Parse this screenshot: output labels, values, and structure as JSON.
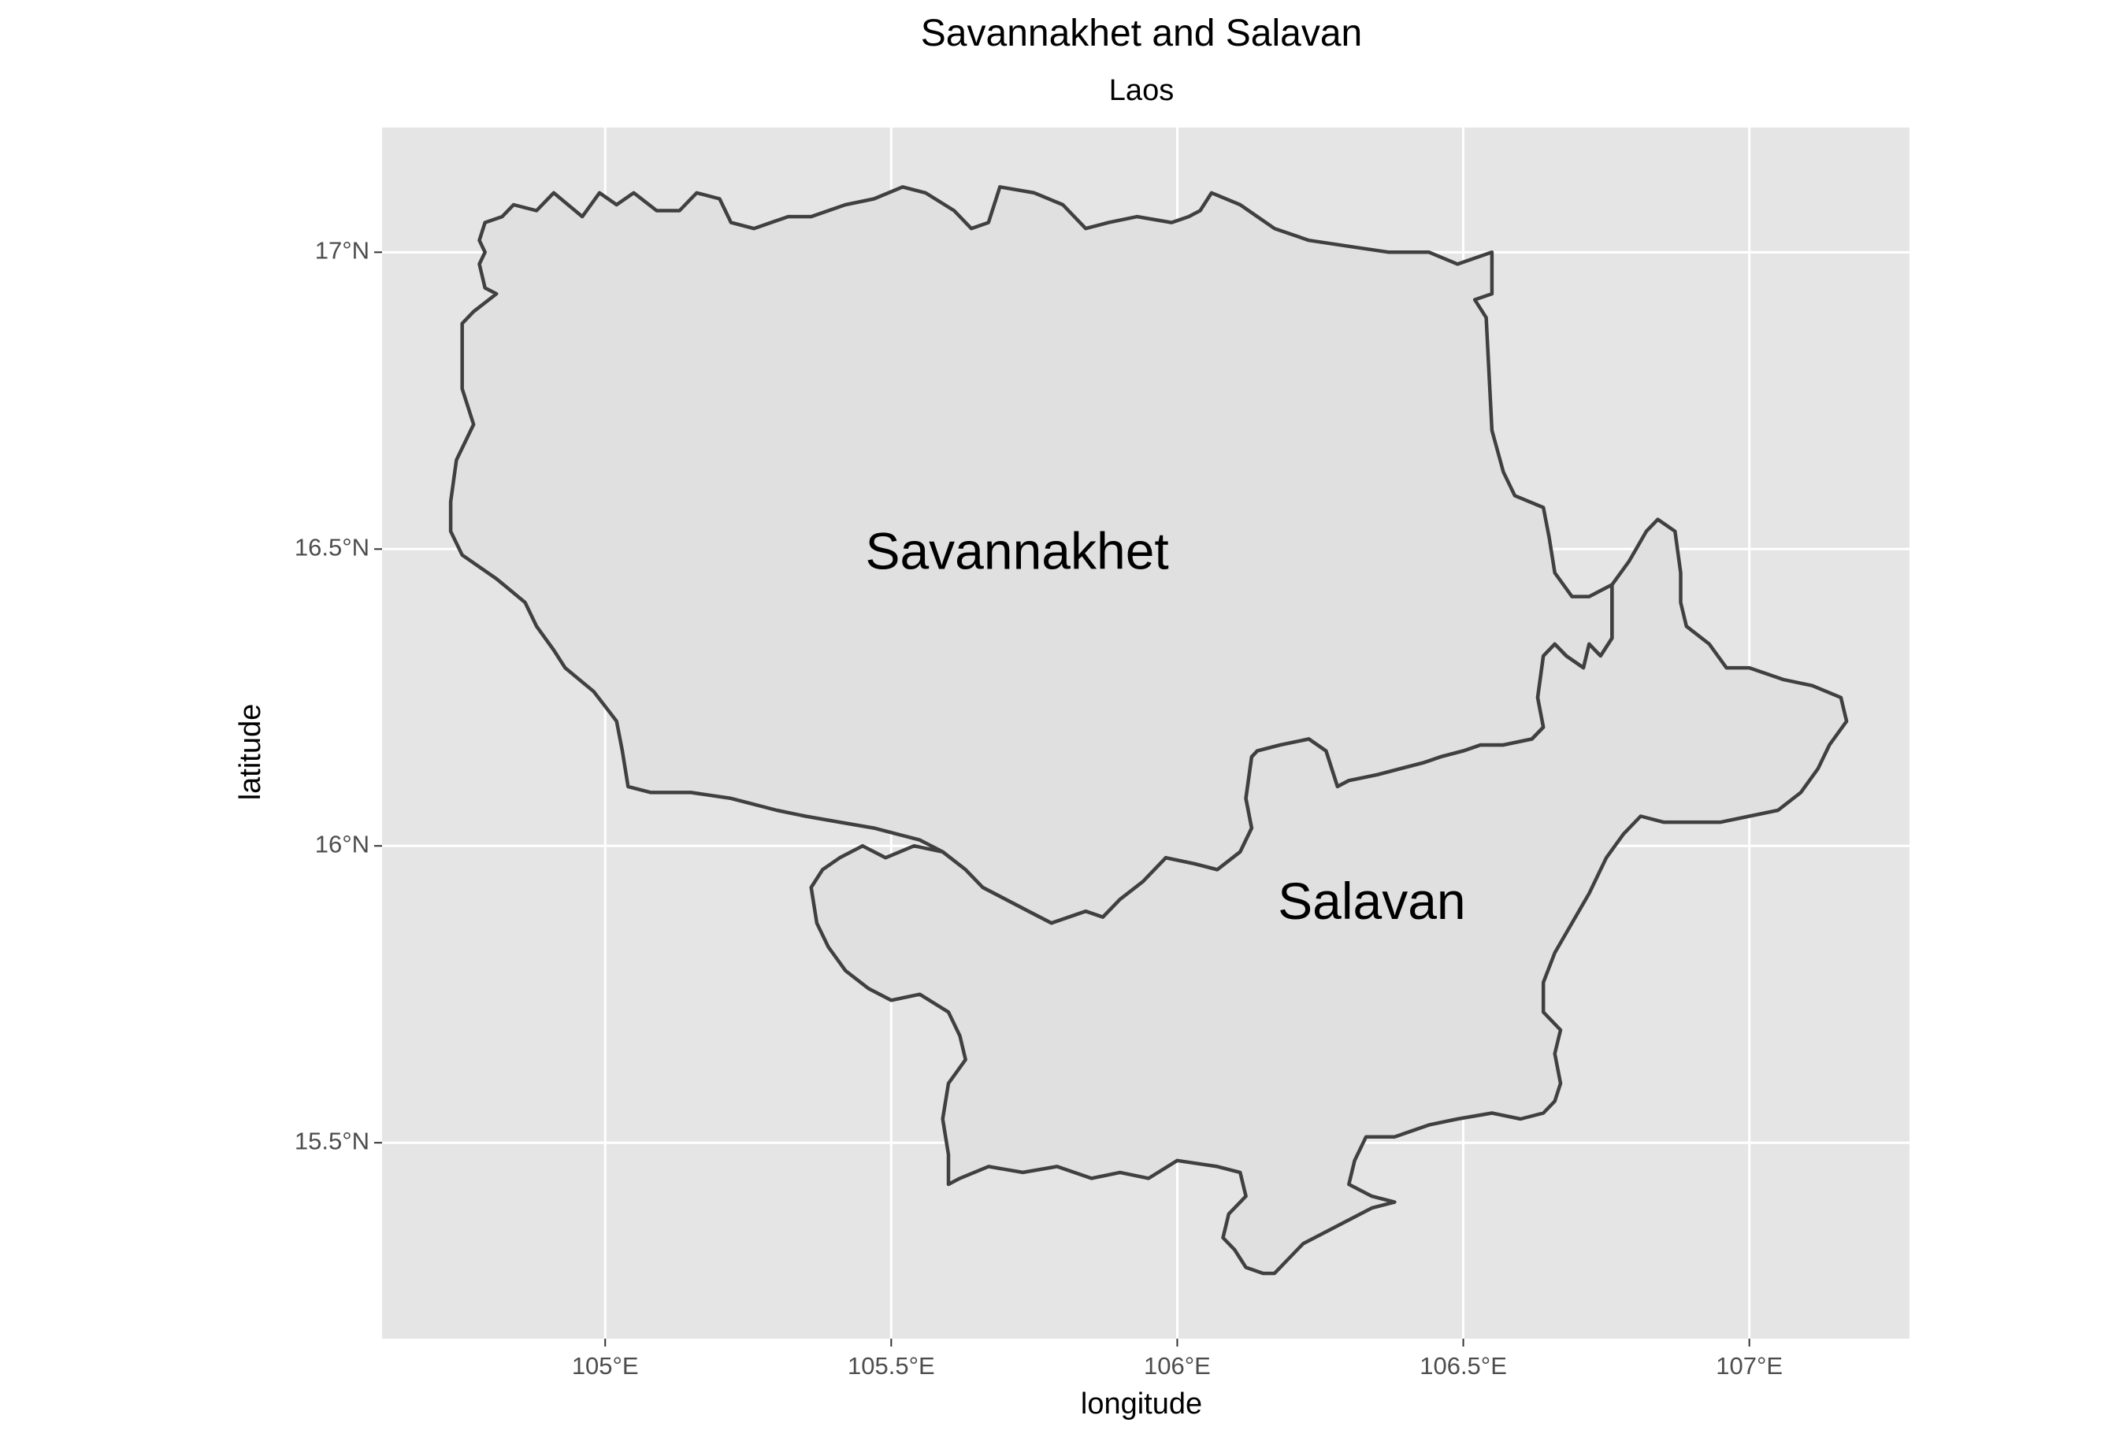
{
  "title": "Savannakhet and Salavan",
  "subtitle": "Laos",
  "xlabel": "longitude",
  "ylabel": "latitude",
  "x_ticks": [
    {
      "value": 105.0,
      "label": "105°E"
    },
    {
      "value": 105.5,
      "label": "105.5°E"
    },
    {
      "value": 106.0,
      "label": "106°E"
    },
    {
      "value": 106.5,
      "label": "106.5°E"
    },
    {
      "value": 107.0,
      "label": "107°E"
    }
  ],
  "y_ticks": [
    {
      "value": 15.5,
      "label": "15.5°N"
    },
    {
      "value": 16.0,
      "label": "16°N"
    },
    {
      "value": 16.5,
      "label": "16.5°N"
    },
    {
      "value": 17.0,
      "label": "17°N"
    }
  ],
  "xlim": [
    104.61,
    107.28
  ],
  "ylim": [
    15.17,
    17.21
  ],
  "colors": {
    "panel": "#e5e5e5",
    "grid": "#ffffff",
    "region_fill": "#e0e0e0",
    "region_stroke": "#404040"
  },
  "regions": [
    {
      "name": "Savannakhet",
      "label_position": [
        105.72,
        16.49
      ],
      "boundary": [
        [
          104.79,
          16.94
        ],
        [
          104.78,
          16.98
        ],
        [
          104.79,
          17.0
        ],
        [
          104.78,
          17.02
        ],
        [
          104.79,
          17.05
        ],
        [
          104.82,
          17.06
        ],
        [
          104.84,
          17.08
        ],
        [
          104.88,
          17.07
        ],
        [
          104.91,
          17.1
        ],
        [
          104.96,
          17.06
        ],
        [
          104.99,
          17.1
        ],
        [
          105.02,
          17.08
        ],
        [
          105.05,
          17.1
        ],
        [
          105.09,
          17.07
        ],
        [
          105.13,
          17.07
        ],
        [
          105.16,
          17.1
        ],
        [
          105.2,
          17.09
        ],
        [
          105.22,
          17.05
        ],
        [
          105.26,
          17.04
        ],
        [
          105.29,
          17.05
        ],
        [
          105.32,
          17.06
        ],
        [
          105.36,
          17.06
        ],
        [
          105.42,
          17.08
        ],
        [
          105.47,
          17.09
        ],
        [
          105.52,
          17.11
        ],
        [
          105.56,
          17.1
        ],
        [
          105.61,
          17.07
        ],
        [
          105.64,
          17.04
        ],
        [
          105.67,
          17.05
        ],
        [
          105.69,
          17.11
        ],
        [
          105.75,
          17.1
        ],
        [
          105.8,
          17.08
        ],
        [
          105.84,
          17.04
        ],
        [
          105.88,
          17.05
        ],
        [
          105.93,
          17.06
        ],
        [
          105.99,
          17.05
        ],
        [
          106.02,
          17.06
        ],
        [
          106.04,
          17.07
        ],
        [
          106.06,
          17.1
        ],
        [
          106.11,
          17.08
        ],
        [
          106.14,
          17.06
        ],
        [
          106.17,
          17.04
        ],
        [
          106.23,
          17.02
        ],
        [
          106.3,
          17.01
        ],
        [
          106.37,
          17.0
        ],
        [
          106.44,
          17.0
        ],
        [
          106.49,
          16.98
        ],
        [
          106.55,
          17.0
        ],
        [
          106.55,
          16.93
        ],
        [
          106.52,
          16.92
        ],
        [
          106.54,
          16.89
        ],
        [
          106.55,
          16.7
        ],
        [
          106.57,
          16.63
        ],
        [
          106.59,
          16.59
        ],
        [
          106.64,
          16.57
        ],
        [
          106.65,
          16.52
        ],
        [
          106.66,
          16.46
        ],
        [
          106.69,
          16.42
        ],
        [
          106.72,
          16.42
        ],
        [
          106.76,
          16.44
        ],
        [
          106.76,
          16.35
        ],
        [
          106.74,
          16.32
        ],
        [
          106.72,
          16.34
        ],
        [
          106.71,
          16.3
        ],
        [
          106.68,
          16.32
        ],
        [
          106.66,
          16.34
        ],
        [
          106.64,
          16.32
        ],
        [
          106.63,
          16.25
        ],
        [
          106.64,
          16.2
        ],
        [
          106.62,
          16.18
        ],
        [
          106.57,
          16.17
        ],
        [
          106.53,
          16.17
        ],
        [
          106.5,
          16.16
        ],
        [
          106.46,
          16.15
        ],
        [
          106.43,
          16.14
        ],
        [
          106.39,
          16.13
        ],
        [
          106.35,
          16.12
        ],
        [
          106.3,
          16.11
        ],
        [
          106.28,
          16.1
        ],
        [
          106.26,
          16.16
        ],
        [
          106.23,
          16.18
        ],
        [
          106.18,
          16.17
        ],
        [
          106.14,
          16.16
        ],
        [
          106.13,
          16.15
        ],
        [
          106.12,
          16.08
        ],
        [
          106.13,
          16.03
        ],
        [
          106.11,
          15.99
        ],
        [
          106.07,
          15.96
        ],
        [
          106.03,
          15.97
        ],
        [
          105.98,
          15.98
        ],
        [
          105.94,
          15.94
        ],
        [
          105.9,
          15.91
        ],
        [
          105.87,
          15.88
        ],
        [
          105.84,
          15.89
        ],
        [
          105.81,
          15.88
        ],
        [
          105.78,
          15.87
        ],
        [
          105.74,
          15.89
        ],
        [
          105.7,
          15.91
        ],
        [
          105.66,
          15.93
        ],
        [
          105.63,
          15.96
        ],
        [
          105.59,
          15.99
        ],
        [
          105.55,
          16.01
        ],
        [
          105.51,
          16.02
        ],
        [
          105.47,
          16.03
        ],
        [
          105.41,
          16.04
        ],
        [
          105.35,
          16.05
        ],
        [
          105.3,
          16.06
        ],
        [
          105.22,
          16.08
        ],
        [
          105.15,
          16.09
        ],
        [
          105.08,
          16.09
        ],
        [
          105.04,
          16.1
        ],
        [
          105.03,
          16.16
        ],
        [
          105.02,
          16.21
        ],
        [
          104.98,
          16.26
        ],
        [
          104.93,
          16.3
        ],
        [
          104.91,
          16.33
        ],
        [
          104.88,
          16.37
        ],
        [
          104.86,
          16.41
        ],
        [
          104.81,
          16.45
        ],
        [
          104.75,
          16.49
        ],
        [
          104.73,
          16.53
        ],
        [
          104.73,
          16.58
        ],
        [
          104.74,
          16.65
        ],
        [
          104.77,
          16.71
        ],
        [
          104.75,
          16.77
        ],
        [
          104.75,
          16.82
        ],
        [
          104.75,
          16.88
        ],
        [
          104.77,
          16.9
        ],
        [
          104.81,
          16.93
        ],
        [
          104.79,
          16.94
        ]
      ]
    },
    {
      "name": "Salavan",
      "label_position": [
        106.34,
        15.9
      ],
      "boundary": [
        [
          105.59,
          15.99
        ],
        [
          105.63,
          15.96
        ],
        [
          105.66,
          15.93
        ],
        [
          105.7,
          15.91
        ],
        [
          105.74,
          15.89
        ],
        [
          105.78,
          15.87
        ],
        [
          105.81,
          15.88
        ],
        [
          105.84,
          15.89
        ],
        [
          105.87,
          15.88
        ],
        [
          105.9,
          15.91
        ],
        [
          105.94,
          15.94
        ],
        [
          105.98,
          15.98
        ],
        [
          106.03,
          15.97
        ],
        [
          106.07,
          15.96
        ],
        [
          106.11,
          15.99
        ],
        [
          106.13,
          16.03
        ],
        [
          106.12,
          16.08
        ],
        [
          106.13,
          16.15
        ],
        [
          106.14,
          16.16
        ],
        [
          106.18,
          16.17
        ],
        [
          106.23,
          16.18
        ],
        [
          106.26,
          16.16
        ],
        [
          106.28,
          16.1
        ],
        [
          106.3,
          16.11
        ],
        [
          106.35,
          16.12
        ],
        [
          106.39,
          16.13
        ],
        [
          106.43,
          16.14
        ],
        [
          106.46,
          16.15
        ],
        [
          106.5,
          16.16
        ],
        [
          106.53,
          16.17
        ],
        [
          106.57,
          16.17
        ],
        [
          106.62,
          16.18
        ],
        [
          106.64,
          16.2
        ],
        [
          106.63,
          16.25
        ],
        [
          106.64,
          16.32
        ],
        [
          106.66,
          16.34
        ],
        [
          106.68,
          16.32
        ],
        [
          106.71,
          16.3
        ],
        [
          106.72,
          16.34
        ],
        [
          106.74,
          16.32
        ],
        [
          106.76,
          16.35
        ],
        [
          106.76,
          16.44
        ],
        [
          106.79,
          16.48
        ],
        [
          106.82,
          16.53
        ],
        [
          106.84,
          16.55
        ],
        [
          106.87,
          16.53
        ],
        [
          106.88,
          16.46
        ],
        [
          106.88,
          16.41
        ],
        [
          106.89,
          16.37
        ],
        [
          106.93,
          16.34
        ],
        [
          106.96,
          16.3
        ],
        [
          107.0,
          16.3
        ],
        [
          107.06,
          16.28
        ],
        [
          107.11,
          16.27
        ],
        [
          107.16,
          16.25
        ],
        [
          107.17,
          16.21
        ],
        [
          107.14,
          16.17
        ],
        [
          107.12,
          16.13
        ],
        [
          107.09,
          16.09
        ],
        [
          107.05,
          16.06
        ],
        [
          107.0,
          16.05
        ],
        [
          106.95,
          16.04
        ],
        [
          106.89,
          16.04
        ],
        [
          106.85,
          16.04
        ],
        [
          106.81,
          16.05
        ],
        [
          106.78,
          16.02
        ],
        [
          106.75,
          15.98
        ],
        [
          106.72,
          15.92
        ],
        [
          106.69,
          15.87
        ],
        [
          106.66,
          15.82
        ],
        [
          106.64,
          15.77
        ],
        [
          106.64,
          15.72
        ],
        [
          106.67,
          15.69
        ],
        [
          106.66,
          15.65
        ],
        [
          106.67,
          15.6
        ],
        [
          106.66,
          15.57
        ],
        [
          106.64,
          15.55
        ],
        [
          106.6,
          15.54
        ],
        [
          106.55,
          15.55
        ],
        [
          106.49,
          15.54
        ],
        [
          106.44,
          15.53
        ],
        [
          106.38,
          15.51
        ],
        [
          106.33,
          15.51
        ],
        [
          106.31,
          15.47
        ],
        [
          106.3,
          15.43
        ],
        [
          106.34,
          15.41
        ],
        [
          106.38,
          15.4
        ],
        [
          106.34,
          15.39
        ],
        [
          106.28,
          15.36
        ],
        [
          106.22,
          15.33
        ],
        [
          106.19,
          15.3
        ],
        [
          106.17,
          15.28
        ],
        [
          106.15,
          15.28
        ],
        [
          106.12,
          15.29
        ],
        [
          106.1,
          15.32
        ],
        [
          106.08,
          15.34
        ],
        [
          106.09,
          15.38
        ],
        [
          106.12,
          15.41
        ],
        [
          106.11,
          15.45
        ],
        [
          106.07,
          15.46
        ],
        [
          106.0,
          15.47
        ],
        [
          105.95,
          15.44
        ],
        [
          105.9,
          15.45
        ],
        [
          105.85,
          15.44
        ],
        [
          105.79,
          15.46
        ],
        [
          105.73,
          15.45
        ],
        [
          105.67,
          15.46
        ],
        [
          105.62,
          15.44
        ],
        [
          105.6,
          15.43
        ],
        [
          105.6,
          15.48
        ],
        [
          105.59,
          15.54
        ],
        [
          105.6,
          15.6
        ],
        [
          105.63,
          15.64
        ],
        [
          105.62,
          15.68
        ],
        [
          105.6,
          15.72
        ],
        [
          105.55,
          15.75
        ],
        [
          105.5,
          15.74
        ],
        [
          105.46,
          15.76
        ],
        [
          105.42,
          15.79
        ],
        [
          105.39,
          15.83
        ],
        [
          105.37,
          15.87
        ],
        [
          105.36,
          15.93
        ],
        [
          105.38,
          15.96
        ],
        [
          105.41,
          15.98
        ],
        [
          105.45,
          16.0
        ],
        [
          105.49,
          15.98
        ],
        [
          105.54,
          16.0
        ],
        [
          105.59,
          15.99
        ]
      ]
    }
  ]
}
